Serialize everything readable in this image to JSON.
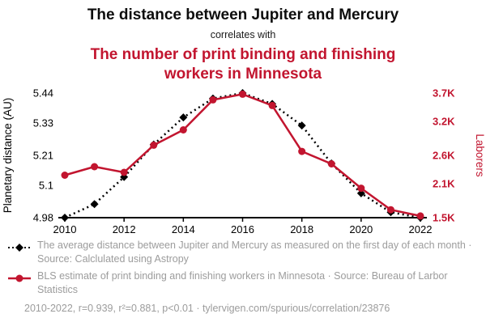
{
  "header": {
    "title": "The distance between Jupiter and Mercury",
    "connector": "correlates with",
    "subtitle": "The number of print binding and finishing workers in Minnesota"
  },
  "colors": {
    "accent_red": "#c2152f",
    "series_black": "#000000",
    "legend_gray": "#9c9c9c"
  },
  "chart_data": {
    "type": "line",
    "x": [
      2010,
      2011,
      2012,
      2013,
      2014,
      2015,
      2016,
      2017,
      2018,
      2019,
      2020,
      2021,
      2022
    ],
    "x_range": [
      2010,
      2022
    ],
    "x_ticks": [
      "2010",
      "2012",
      "2014",
      "2016",
      "2018",
      "2020",
      "2022"
    ],
    "left_axis": {
      "label": "Planetary distance (AU)",
      "tick_values": [
        4.98,
        5.1,
        5.21,
        5.33,
        5.44
      ],
      "tick_labels": [
        "4.98",
        "5.1",
        "5.21",
        "5.33",
        "5.44"
      ],
      "range": [
        4.98,
        5.44
      ]
    },
    "right_axis": {
      "label": "Laborers",
      "tick_values": [
        1500,
        2100,
        2600,
        3200,
        3700
      ],
      "tick_labels": [
        "1.5K",
        "2.1K",
        "2.6K",
        "3.2K",
        "3.7K"
      ],
      "range": [
        1500,
        3700
      ]
    },
    "series": [
      {
        "name": "Average distance between Jupiter and Mercury (AU)",
        "axis": "left",
        "color": "#000000",
        "line_style": "dotted",
        "marker": "diamond",
        "values": [
          4.98,
          5.03,
          5.13,
          5.25,
          5.35,
          5.42,
          5.44,
          5.4,
          5.32,
          5.18,
          5.07,
          5.0,
          4.98
        ]
      },
      {
        "name": "Print binding and finishing workers in Minnesota",
        "axis": "right",
        "color": "#c2152f",
        "line_style": "solid",
        "marker": "circle",
        "values": [
          2250,
          2400,
          2300,
          2780,
          3050,
          3580,
          3680,
          3480,
          2670,
          2450,
          2020,
          1640,
          1530
        ]
      }
    ],
    "grid": false,
    "legend_position": "below"
  },
  "legend": [
    {
      "text": "The average distance between Jupiter and Mercury as measured on the first day of each month · Source: Calclulated using Astropy"
    },
    {
      "text": "BLS estimate of print binding and finishing workers in Minnesota · Source: Bureau of Larbor Statistics"
    }
  ],
  "footer": "2010-2022, r=0.939, r²=0.881, p<0.01 · tylervigen.com/spurious/correlation/23876"
}
